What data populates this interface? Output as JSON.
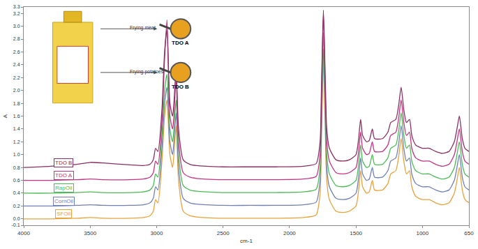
{
  "chart_data": {
    "type": "line",
    "x_label": "cm-1",
    "y_label": "A",
    "x": [
      4000,
      3800,
      3600,
      3500,
      3400,
      3200,
      3100,
      3050,
      3025,
      3008,
      2990,
      2960,
      2940,
      2922,
      2900,
      2880,
      2870,
      2853,
      2835,
      2800,
      2750,
      2700,
      2500,
      2300,
      2100,
      1900,
      1800,
      1770,
      1760,
      1745,
      1730,
      1720,
      1700,
      1650,
      1600,
      1550,
      1500,
      1480,
      1465,
      1450,
      1420,
      1400,
      1377,
      1360,
      1300,
      1260,
      1238,
      1200,
      1180,
      1160,
      1140,
      1120,
      1097,
      1080,
      1050,
      1000,
      950,
      900,
      850,
      800,
      760,
      740,
      722,
      700,
      680,
      650
    ],
    "series": [
      {
        "name": "SFOil",
        "color": "#e8a23a",
        "values": [
          0.0,
          0.0,
          0.01,
          0.02,
          0.01,
          0.01,
          0.02,
          0.05,
          0.12,
          0.3,
          0.25,
          0.9,
          1.6,
          1.85,
          1.0,
          0.8,
          1.0,
          1.45,
          0.6,
          0.12,
          0.05,
          0.03,
          0.01,
          0.01,
          0.01,
          0.02,
          0.06,
          0.4,
          1.2,
          2.45,
          1.3,
          0.6,
          0.3,
          0.12,
          0.1,
          0.12,
          0.2,
          0.45,
          0.75,
          0.5,
          0.4,
          0.42,
          0.6,
          0.45,
          0.45,
          0.55,
          0.7,
          0.75,
          0.95,
          1.25,
          0.9,
          0.7,
          0.75,
          0.5,
          0.35,
          0.3,
          0.3,
          0.25,
          0.22,
          0.25,
          0.4,
          0.6,
          0.8,
          0.45,
          0.3,
          0.25
        ]
      },
      {
        "name": "CornOil",
        "color": "#6f80b8",
        "values": [
          0.2,
          0.2,
          0.21,
          0.22,
          0.21,
          0.21,
          0.22,
          0.25,
          0.32,
          0.5,
          0.45,
          1.1,
          1.8,
          2.05,
          1.2,
          1.0,
          1.2,
          1.65,
          0.8,
          0.32,
          0.25,
          0.23,
          0.21,
          0.21,
          0.21,
          0.22,
          0.26,
          0.6,
          1.4,
          2.65,
          1.5,
          0.8,
          0.5,
          0.32,
          0.3,
          0.32,
          0.4,
          0.65,
          0.95,
          0.7,
          0.6,
          0.62,
          0.8,
          0.65,
          0.65,
          0.75,
          0.9,
          0.95,
          1.15,
          1.45,
          1.1,
          0.9,
          0.95,
          0.7,
          0.55,
          0.5,
          0.5,
          0.45,
          0.42,
          0.45,
          0.6,
          0.8,
          1.0,
          0.65,
          0.5,
          0.45
        ]
      },
      {
        "name": "RapOil",
        "color": "#4cbb55",
        "values": [
          0.4,
          0.4,
          0.41,
          0.42,
          0.41,
          0.41,
          0.42,
          0.45,
          0.52,
          0.7,
          0.65,
          1.3,
          2.0,
          2.25,
          1.4,
          1.2,
          1.4,
          1.85,
          1.0,
          0.52,
          0.45,
          0.43,
          0.41,
          0.41,
          0.41,
          0.42,
          0.46,
          0.8,
          1.6,
          2.9,
          1.7,
          1.0,
          0.7,
          0.52,
          0.5,
          0.52,
          0.6,
          0.85,
          1.15,
          0.9,
          0.8,
          0.82,
          1.0,
          0.85,
          0.85,
          0.95,
          1.1,
          1.15,
          1.35,
          1.65,
          1.3,
          1.1,
          1.15,
          0.9,
          0.75,
          0.7,
          0.7,
          0.65,
          0.62,
          0.65,
          0.8,
          1.0,
          1.2,
          0.85,
          0.7,
          0.65
        ]
      },
      {
        "name": "TDO A",
        "color": "#c43384",
        "values": [
          0.6,
          0.6,
          0.61,
          0.62,
          0.61,
          0.61,
          0.62,
          0.65,
          0.72,
          0.9,
          0.85,
          1.5,
          2.5,
          3.1,
          1.6,
          1.4,
          1.6,
          2.2,
          1.2,
          0.72,
          0.65,
          0.63,
          0.61,
          0.61,
          0.61,
          0.62,
          0.66,
          1.0,
          1.8,
          3.22,
          1.9,
          1.2,
          0.9,
          0.72,
          0.7,
          0.72,
          0.8,
          1.05,
          1.35,
          1.1,
          1.0,
          1.02,
          1.2,
          1.05,
          1.05,
          1.15,
          1.3,
          1.35,
          1.55,
          1.85,
          1.5,
          1.3,
          1.35,
          1.1,
          0.95,
          0.9,
          0.9,
          0.85,
          0.82,
          0.85,
          1.0,
          1.2,
          1.4,
          1.05,
          0.9,
          0.85
        ]
      },
      {
        "name": "TDO B",
        "color": "#8a2f63",
        "values": [
          0.8,
          0.82,
          0.85,
          0.88,
          0.87,
          0.84,
          0.83,
          0.85,
          0.92,
          1.1,
          1.05,
          1.7,
          2.6,
          2.95,
          1.8,
          1.6,
          1.8,
          2.35,
          1.4,
          0.92,
          0.85,
          0.83,
          0.81,
          0.81,
          0.81,
          0.82,
          0.86,
          1.2,
          2.0,
          3.25,
          2.1,
          1.4,
          1.1,
          0.92,
          0.9,
          0.92,
          1.0,
          1.25,
          1.55,
          1.3,
          1.2,
          1.22,
          1.4,
          1.25,
          1.25,
          1.35,
          1.5,
          1.55,
          1.75,
          2.05,
          1.7,
          1.5,
          1.55,
          1.3,
          1.15,
          1.1,
          1.1,
          1.05,
          1.02,
          1.05,
          1.2,
          1.4,
          1.6,
          1.25,
          1.1,
          1.05
        ]
      }
    ],
    "xlim": [
      4000,
      650
    ],
    "xticks": [
      4000,
      3500,
      3000,
      2500,
      2000,
      1500,
      1000,
      650
    ],
    "ylim": [
      -0.1,
      3.3
    ],
    "yticks": [
      -0.1,
      {
        "value": 0,
        "label": "0.0"
      },
      0.2,
      0.4,
      0.6,
      0.8,
      {
        "value": 1,
        "label": "1.0"
      },
      1.2,
      1.4,
      1.6,
      1.8,
      {
        "value": 2,
        "label": "2.0"
      },
      2.2,
      2.4,
      2.6,
      2.8,
      {
        "value": 3,
        "label": "3.0"
      },
      3.2,
      3.3
    ],
    "grid": false,
    "annotations": [
      "Frying meat",
      "Frying potatoes",
      "TDO A",
      "TDO B"
    ]
  }
}
